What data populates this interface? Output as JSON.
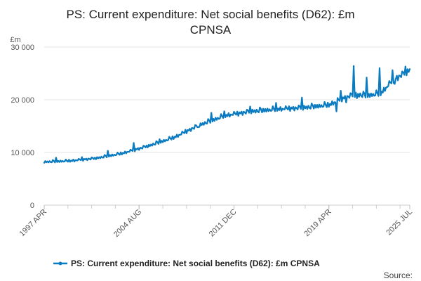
{
  "page": {
    "title_line1": "PS: Current expenditure: Net social benefits (D62): £m",
    "title_line2": "CPNSA",
    "source_label": "Source:"
  },
  "colors": {
    "series": "#0a7bc1",
    "grid": "#e6e6e6",
    "axis_text": "#555555"
  },
  "chart_data": {
    "type": "line",
    "title": "PS: Current expenditure: Net social benefits (D62): £m CPNSA",
    "ylabel": "£m",
    "xlabel": "",
    "ylim": [
      0,
      30000
    ],
    "y_ticks": [
      0,
      10000,
      20000,
      30000
    ],
    "y_tick_labels": [
      "0",
      "10 000",
      "20 000",
      "30 000"
    ],
    "x_range": [
      "1997-04",
      "2025-07"
    ],
    "x_ticks": [
      "1997 APR",
      "2004 AUG",
      "2011 DEC",
      "2019 APR",
      "2025 JUL"
    ],
    "x_tick_index": [
      0,
      88,
      176,
      264,
      339
    ],
    "grid": true,
    "legend": {
      "position": "bottom",
      "entries": [
        "PS: Current expenditure: Net social benefits (D62): £m CPNSA"
      ]
    },
    "series": [
      {
        "name": "PS: Current expenditure: Net social benefits (D62): £m CPNSA",
        "frequency": "monthly",
        "start": "1997-04",
        "anchors": [
          {
            "i": 0,
            "v": 8200
          },
          {
            "i": 24,
            "v": 8400
          },
          {
            "i": 48,
            "v": 8900
          },
          {
            "i": 72,
            "v": 9800
          },
          {
            "i": 96,
            "v": 11200
          },
          {
            "i": 120,
            "v": 12800
          },
          {
            "i": 144,
            "v": 15200
          },
          {
            "i": 168,
            "v": 17000
          },
          {
            "i": 192,
            "v": 17800
          },
          {
            "i": 216,
            "v": 18200
          },
          {
            "i": 240,
            "v": 18500
          },
          {
            "i": 264,
            "v": 19000
          },
          {
            "i": 276,
            "v": 20200
          },
          {
            "i": 288,
            "v": 21000
          },
          {
            "i": 300,
            "v": 20800
          },
          {
            "i": 312,
            "v": 21200
          },
          {
            "i": 324,
            "v": 23800
          },
          {
            "i": 339,
            "v": 25600
          }
        ],
        "march_spikes": [
          {
            "year": 1998,
            "v": 9000
          },
          {
            "year": 2000,
            "v": 9100
          },
          {
            "year": 2002,
            "v": 10300
          },
          {
            "year": 2004,
            "v": 11800
          },
          {
            "year": 2006,
            "v": 12500
          },
          {
            "year": 2008,
            "v": 14300
          },
          {
            "year": 2009,
            "v": 14800
          },
          {
            "year": 2010,
            "v": 17500
          },
          {
            "year": 2011,
            "v": 17800
          },
          {
            "year": 2013,
            "v": 18700
          },
          {
            "year": 2015,
            "v": 19400
          },
          {
            "year": 2017,
            "v": 20400
          },
          {
            "year": 2020,
            "v": 21700
          },
          {
            "year": 2021,
            "v": 26400
          },
          {
            "year": 2022,
            "v": 24200
          },
          {
            "year": 2023,
            "v": 26000
          },
          {
            "year": 2024,
            "v": 25600
          },
          {
            "year": 2025,
            "v": 26300
          }
        ],
        "notable_dips": [
          {
            "date": "2019-11",
            "v": 17800
          },
          {
            "date": "2020-08",
            "v": 19500
          },
          {
            "date": "2021-06",
            "v": 20300
          },
          {
            "date": "2024-05",
            "v": 23000
          }
        ]
      }
    ]
  }
}
